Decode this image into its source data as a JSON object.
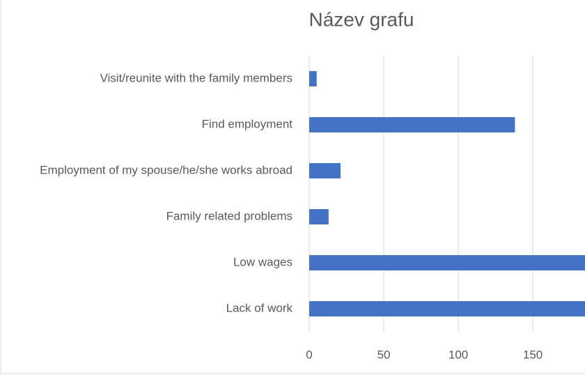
{
  "chart_data": {
    "type": "bar",
    "orientation": "horizontal",
    "title": "Název grafu",
    "categories": [
      "Visit/reunite with the family members",
      "Find employment",
      "Employment of my spouse/he/she works abroad",
      "Family related problems",
      "Low wages",
      "Lack of work"
    ],
    "values": [
      5,
      138,
      21,
      13,
      190,
      200
    ],
    "color": "#4472c4",
    "xlim": [
      0,
      185
    ],
    "xticks": [
      0,
      50,
      100,
      150
    ],
    "grid": true
  }
}
